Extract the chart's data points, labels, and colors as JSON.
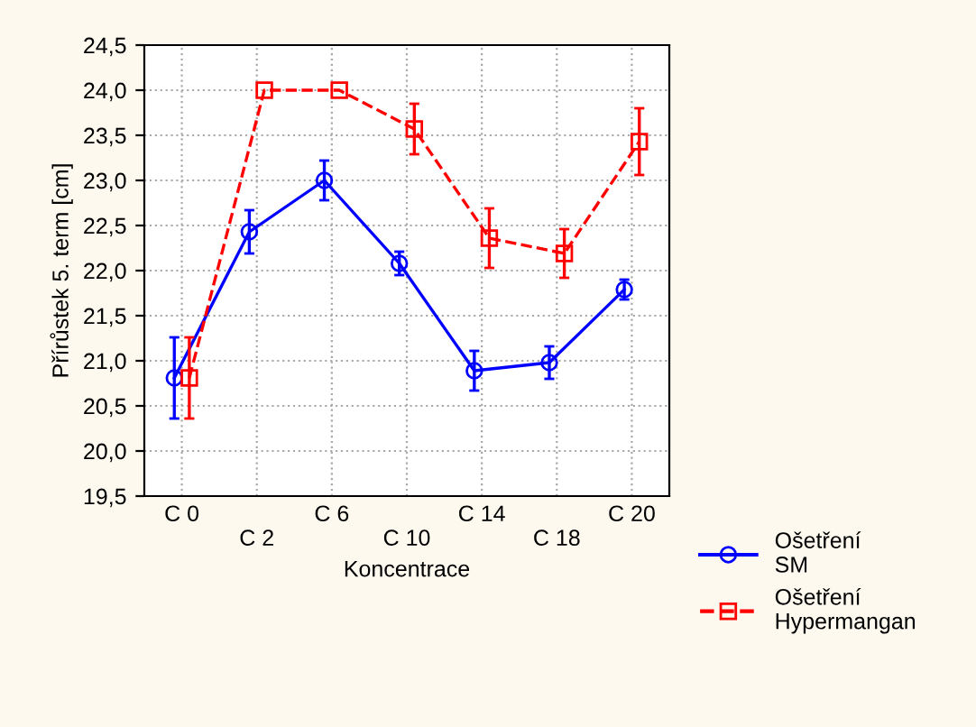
{
  "chart_data": {
    "type": "line",
    "xlabel": "Koncentrace",
    "ylabel": "Přírůstek 5. term [cm]",
    "categories": [
      "C 0",
      "C 2",
      "C 6",
      "C 10",
      "C 14",
      "C 18",
      "C 20"
    ],
    "series": [
      {
        "name": "Ošetření SM",
        "color": "#0000ff",
        "marker": "circle",
        "line_style": "solid",
        "values": [
          20.81,
          22.43,
          23.0,
          22.08,
          20.89,
          20.98,
          21.79
        ],
        "errors": [
          0.45,
          0.24,
          0.22,
          0.13,
          0.22,
          0.18,
          0.11
        ]
      },
      {
        "name": "Ošetření Hypermangan",
        "color": "#ff0000",
        "marker": "square",
        "line_style": "dashed",
        "values": [
          20.81,
          24.0,
          24.0,
          23.57,
          22.36,
          22.19,
          23.43
        ],
        "errors": [
          0.45,
          null,
          null,
          0.28,
          0.33,
          0.27,
          0.37
        ]
      }
    ],
    "ylim": [
      19.5,
      24.5
    ],
    "yticks": [
      {
        "value": 19.5,
        "label": "19,5"
      },
      {
        "value": 20.0,
        "label": "20,0"
      },
      {
        "value": 20.5,
        "label": "20,5"
      },
      {
        "value": 21.0,
        "label": "21,0"
      },
      {
        "value": 21.5,
        "label": "21,5"
      },
      {
        "value": 22.0,
        "label": "22,0"
      },
      {
        "value": 22.5,
        "label": "22,5"
      },
      {
        "value": 23.0,
        "label": "23,0"
      },
      {
        "value": 23.5,
        "label": "23,5"
      },
      {
        "value": 24.0,
        "label": "24,0"
      },
      {
        "value": 24.5,
        "label": "24,5"
      }
    ],
    "grid": true,
    "legend": "bottom right"
  }
}
